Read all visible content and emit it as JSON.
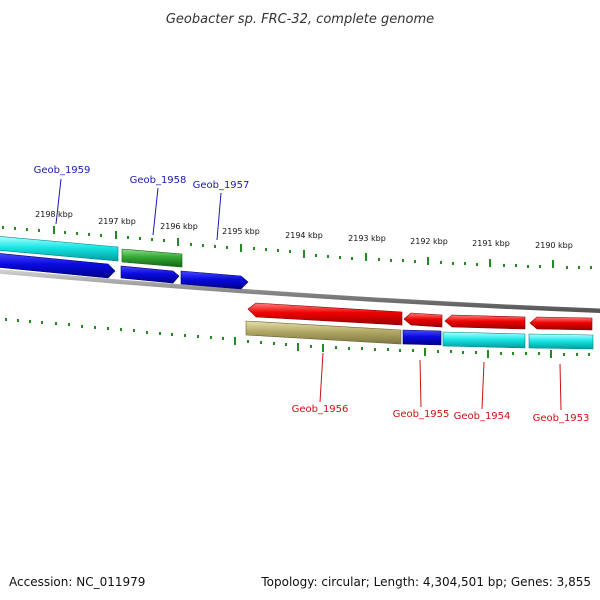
{
  "title": "Geobacter sp. FRC-32, complete genome",
  "footer": {
    "accession": "Accession: NC_011979",
    "summary": "Topology: circular; Length: 4,304,501 bp; Genes: 3,855"
  },
  "ticks": [
    "2198 kbp",
    "2197 kbp",
    "2196 kbp",
    "2195 kbp",
    "2194 kbp",
    "2193 kbp",
    "2192 kbp",
    "2191 kbp",
    "2190 kbp"
  ],
  "genes": [
    {
      "label": "Geob_1959",
      "strand": "forward",
      "color": "#1a1aaa"
    },
    {
      "label": "Geob_1958",
      "strand": "forward",
      "color": "#1a1aaa"
    },
    {
      "label": "Geob_1957",
      "strand": "forward",
      "color": "#1a1aaa"
    },
    {
      "label": "Geob_1956",
      "strand": "reverse",
      "color": "#cc1111"
    },
    {
      "label": "Geob_1955",
      "strand": "reverse",
      "color": "#cc1111"
    },
    {
      "label": "Geob_1954",
      "strand": "reverse",
      "color": "#cc1111"
    },
    {
      "label": "Geob_1953",
      "strand": "reverse",
      "color": "#cc1111"
    }
  ],
  "colors": {
    "forward_cds": "#0a0ae0",
    "reverse_cds": "#ee0000",
    "rna_cyan": "#00e5e5",
    "rna_green": "#33a833",
    "other_khaki": "#b3aa66",
    "backbone": "#8a8a8a",
    "tick_green": "#228b22"
  }
}
